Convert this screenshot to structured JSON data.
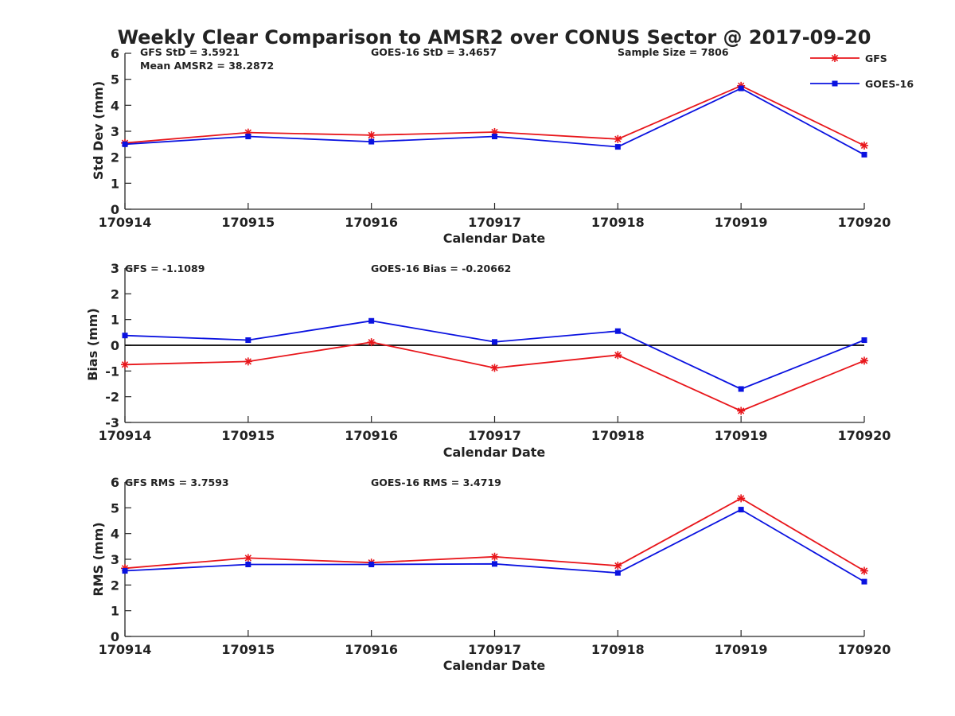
{
  "figure_title": "Weekly Clear Comparison to AMSR2 over CONUS Sector @ 2017-09-20",
  "legend": [
    {
      "label": "GFS",
      "color": "#e8161b",
      "marker": "asterisk"
    },
    {
      "label": "GOES-16",
      "color": "#0a12e0",
      "marker": "square"
    }
  ],
  "chart_data": [
    {
      "type": "line",
      "id": "std",
      "categories": [
        "170914",
        "170915",
        "170916",
        "170917",
        "170918",
        "170919",
        "170920"
      ],
      "xlabel": "Calendar Date",
      "ylabel": "Std Dev (mm)",
      "ylim": [
        0,
        6
      ],
      "yticks": [
        0,
        1,
        2,
        3,
        4,
        5,
        6
      ],
      "series": [
        {
          "name": "GFS",
          "color": "#e8161b",
          "marker": "asterisk",
          "values": [
            2.55,
            2.95,
            2.85,
            2.97,
            2.7,
            4.75,
            2.45
          ]
        },
        {
          "name": "GOES-16",
          "color": "#0a12e0",
          "marker": "square",
          "values": [
            2.5,
            2.8,
            2.6,
            2.8,
            2.4,
            4.65,
            2.1
          ]
        }
      ],
      "annotations": [
        {
          "text": "GFS StD = 3.5921"
        },
        {
          "text": "Mean AMSR2 = 38.2872"
        },
        {
          "text": "GOES-16 StD = 3.4657"
        },
        {
          "text": "Sample Size = 7806"
        }
      ]
    },
    {
      "type": "line",
      "id": "bias",
      "categories": [
        "170914",
        "170915",
        "170916",
        "170917",
        "170918",
        "170919",
        "170920"
      ],
      "xlabel": "Calendar Date",
      "ylabel": "Bias (mm)",
      "ylim": [
        -3,
        3
      ],
      "yticks": [
        -3,
        -2,
        -1,
        0,
        1,
        2,
        3
      ],
      "zero_line": true,
      "series": [
        {
          "name": "GFS",
          "color": "#e8161b",
          "marker": "asterisk",
          "values": [
            -0.75,
            -0.63,
            0.12,
            -0.88,
            -0.38,
            -2.55,
            -0.6
          ]
        },
        {
          "name": "GOES-16",
          "color": "#0a12e0",
          "marker": "square",
          "values": [
            0.38,
            0.2,
            0.95,
            0.13,
            0.55,
            -1.7,
            0.2
          ]
        }
      ],
      "annotations": [
        {
          "text": "GFS = -1.1089"
        },
        {
          "text": "GOES-16 Bias  = -0.20662"
        }
      ]
    },
    {
      "type": "line",
      "id": "rms",
      "categories": [
        "170914",
        "170915",
        "170916",
        "170917",
        "170918",
        "170919",
        "170920"
      ],
      "xlabel": "Calendar Date",
      "ylabel": "RMS (mm)",
      "ylim": [
        0,
        6
      ],
      "yticks": [
        0,
        1,
        2,
        3,
        4,
        5,
        6
      ],
      "series": [
        {
          "name": "GFS",
          "color": "#e8161b",
          "marker": "asterisk",
          "values": [
            2.65,
            3.05,
            2.87,
            3.1,
            2.75,
            5.37,
            2.55
          ]
        },
        {
          "name": "GOES-16",
          "color": "#0a12e0",
          "marker": "square",
          "values": [
            2.55,
            2.8,
            2.8,
            2.82,
            2.47,
            4.93,
            2.13
          ]
        }
      ],
      "annotations": [
        {
          "text": "GFS RMS = 3.7593"
        },
        {
          "text": "GOES-16 RMS = 3.4719"
        }
      ]
    }
  ]
}
